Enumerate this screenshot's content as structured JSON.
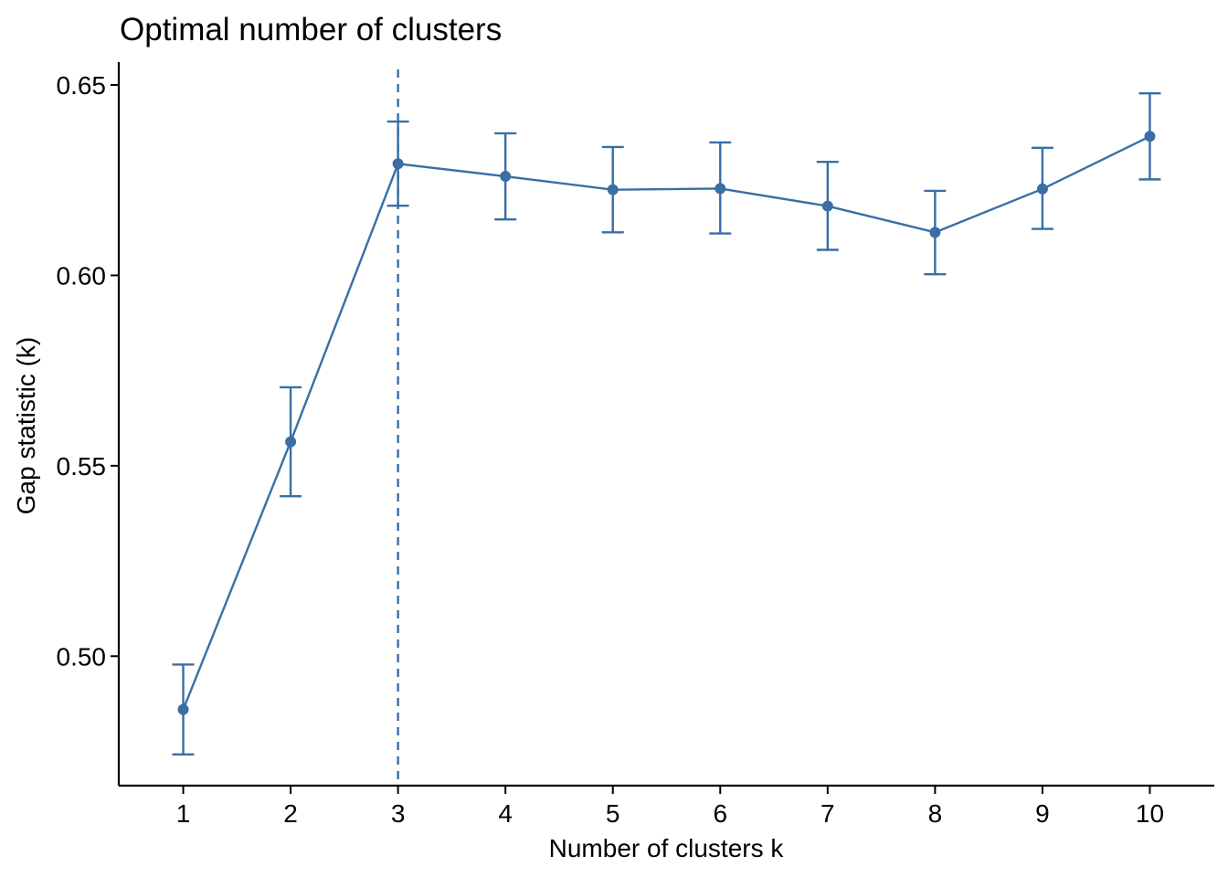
{
  "colors": {
    "series": "#3a6ea5",
    "axis": "#000000",
    "background": "#ffffff"
  },
  "chart_data": {
    "type": "line",
    "title": "Optimal number of clusters",
    "xlabel": "Number of clusters k",
    "ylabel": "Gap statistic (k)",
    "x": [
      1,
      2,
      3,
      4,
      5,
      6,
      7,
      8,
      9,
      10
    ],
    "x_tick_labels": [
      "1",
      "2",
      "3",
      "4",
      "5",
      "6",
      "7",
      "8",
      "9",
      "10"
    ],
    "y_ticks": [
      0.5,
      0.55,
      0.6,
      0.65
    ],
    "y_tick_labels": [
      "0.50",
      "0.55",
      "0.60",
      "0.65"
    ],
    "xlim": [
      0.4,
      10.6
    ],
    "ylim": [
      0.466,
      0.656
    ],
    "grid": false,
    "legend": "none",
    "series": [
      {
        "values": [
          0.486,
          0.5563,
          0.6293,
          0.626,
          0.6225,
          0.6228,
          0.6182,
          0.6113,
          0.6227,
          0.6365
        ],
        "error_low": [
          0.4742,
          0.542,
          0.6183,
          0.6147,
          0.6113,
          0.611,
          0.6067,
          0.6003,
          0.6122,
          0.6252
        ],
        "error_high": [
          0.4978,
          0.5706,
          0.6404,
          0.6373,
          0.6337,
          0.6349,
          0.6298,
          0.6222,
          0.6335,
          0.6478
        ]
      }
    ],
    "annotations": [
      {
        "type": "vline",
        "x": 3,
        "style": "dashed"
      }
    ]
  }
}
